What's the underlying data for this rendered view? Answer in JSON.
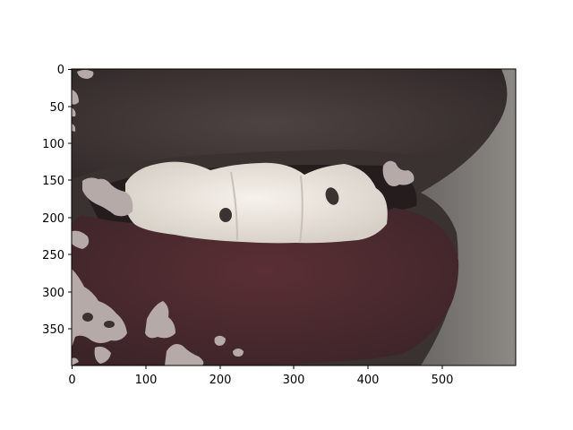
{
  "figure": {
    "image_description_icon": "photo-lips-teeth-icon",
    "xlim": [
      0,
      600
    ],
    "ylim": [
      400,
      0
    ],
    "xticks": [
      "0",
      "100",
      "200",
      "300",
      "400",
      "500"
    ],
    "yticks": [
      "0",
      "50",
      "100",
      "150",
      "200",
      "250",
      "300",
      "350"
    ]
  },
  "colors": {
    "background": "#ffffff",
    "axis": "#000000",
    "skin_dark": "#3d3434",
    "lip_red": "#4a2a2e",
    "teeth": "#ece4dc",
    "wall_gray": "#7d7b78",
    "mask_patch": "#b5aaa7"
  }
}
